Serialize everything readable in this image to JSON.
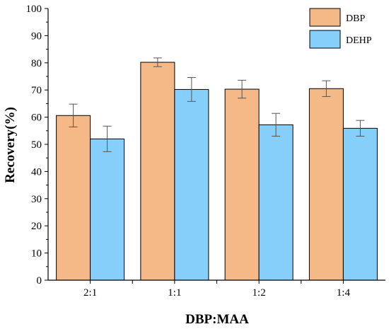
{
  "colors": {
    "dbp": "#F5B887",
    "dehp": "#86CFFA",
    "axis": "#000000"
  },
  "chart_data": {
    "type": "bar",
    "title": "",
    "xlabel": "DBP:MAA",
    "ylabel": "Recovery(%)",
    "ylim": [
      0,
      100
    ],
    "yticks": [
      "0",
      "10",
      "20",
      "30",
      "40",
      "50",
      "60",
      "70",
      "80",
      "90",
      "100"
    ],
    "categories": [
      "2:1",
      "1:1",
      "1:2",
      "1:4"
    ],
    "series": [
      {
        "name": "DBP",
        "values": [
          60.6,
          80.2,
          70.3,
          70.5
        ],
        "errors": [
          4.2,
          1.6,
          3.3,
          2.9
        ]
      },
      {
        "name": "DEHP",
        "values": [
          52.0,
          70.2,
          57.2,
          55.9
        ],
        "errors": [
          4.7,
          4.4,
          4.2,
          2.9
        ]
      }
    ],
    "grid": false,
    "legend_position": "top-right"
  }
}
